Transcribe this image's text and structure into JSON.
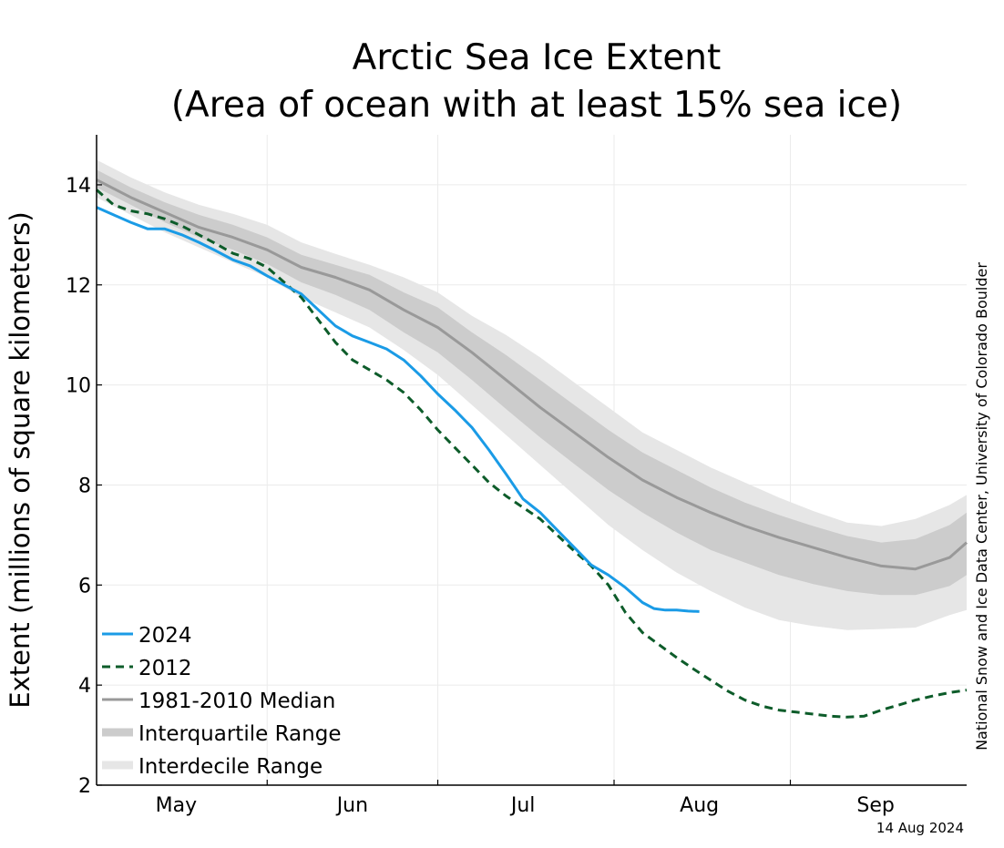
{
  "chart_data": {
    "type": "line",
    "title": "Arctic Sea Ice Extent",
    "subtitle": "(Area of ocean with at least 15% sea ice)",
    "xlabel": "",
    "ylabel": "Extent (millions of square kilometers)",
    "credit": "National Snow and Ice Data Center, University of Colorado Boulder",
    "date_stamp": "14 Aug 2024",
    "x_unit": "day of year",
    "xlim": [
      122,
      275
    ],
    "ylim": [
      2,
      15
    ],
    "x_ticks": [
      {
        "label": "May",
        "day": 136
      },
      {
        "label": "Jun",
        "day": 167
      },
      {
        "label": "Jul",
        "day": 197
      },
      {
        "label": "Aug",
        "day": 228
      },
      {
        "label": "Sep",
        "day": 259
      }
    ],
    "x_gridlines": [
      152,
      182,
      213,
      244
    ],
    "y_ticks": [
      2,
      4,
      6,
      8,
      10,
      12,
      14
    ],
    "grid": true,
    "legend_position": "bottom-left",
    "colors": {
      "series_2024": "#1a9be6",
      "series_2012": "#0d5c2a",
      "median": "#999999",
      "interquartile": "#cccccc",
      "interdecile": "#e6e6e6"
    },
    "legend": [
      {
        "label": "2024",
        "style": "line-2024"
      },
      {
        "label": "2012",
        "style": "line-2012"
      },
      {
        "label": "1981-2010 Median",
        "style": "line-median"
      },
      {
        "label": "Interquartile Range",
        "style": "band-iqr"
      },
      {
        "label": "Interdecile Range",
        "style": "band-idr"
      }
    ],
    "series": [
      {
        "name": "2024",
        "x": [
          122,
          125,
          128,
          131,
          134,
          137,
          140,
          143,
          146,
          149,
          152,
          155,
          158,
          161,
          164,
          167,
          170,
          173,
          176,
          179,
          182,
          185,
          188,
          191,
          194,
          197,
          200,
          203,
          206,
          209,
          212,
          215,
          218,
          220,
          222,
          224,
          226,
          228
        ],
        "y": [
          13.55,
          13.4,
          13.25,
          13.12,
          13.12,
          13.0,
          12.85,
          12.68,
          12.5,
          12.38,
          12.18,
          12.0,
          11.82,
          11.5,
          11.18,
          10.98,
          10.85,
          10.72,
          10.5,
          10.18,
          9.82,
          9.5,
          9.15,
          8.7,
          8.22,
          7.72,
          7.45,
          7.1,
          6.75,
          6.4,
          6.2,
          5.95,
          5.65,
          5.53,
          5.5,
          5.5,
          5.48,
          5.47
        ]
      },
      {
        "name": "2012",
        "x": [
          122,
          125,
          128,
          131,
          134,
          137,
          140,
          143,
          146,
          149,
          152,
          155,
          158,
          161,
          164,
          167,
          170,
          173,
          176,
          179,
          182,
          185,
          188,
          191,
          194,
          197,
          200,
          203,
          206,
          209,
          212,
          215,
          218,
          221,
          224,
          227,
          230,
          233,
          236,
          239,
          242,
          245,
          248,
          251,
          254,
          257,
          260,
          263,
          266,
          269,
          272,
          275
        ],
        "y": [
          13.9,
          13.6,
          13.48,
          13.42,
          13.32,
          13.18,
          13.0,
          12.82,
          12.63,
          12.52,
          12.35,
          12.05,
          11.75,
          11.3,
          10.85,
          10.5,
          10.3,
          10.1,
          9.85,
          9.5,
          9.1,
          8.75,
          8.4,
          8.05,
          7.78,
          7.55,
          7.32,
          7.0,
          6.68,
          6.38,
          6.0,
          5.45,
          5.05,
          4.8,
          4.55,
          4.32,
          4.1,
          3.88,
          3.7,
          3.58,
          3.5,
          3.46,
          3.42,
          3.38,
          3.36,
          3.38,
          3.5,
          3.6,
          3.7,
          3.78,
          3.85,
          3.9
        ]
      },
      {
        "name": "1981-2010 Median",
        "x": [
          122,
          128,
          134,
          140,
          146,
          152,
          158,
          164,
          170,
          176,
          182,
          188,
          194,
          200,
          206,
          212,
          218,
          224,
          230,
          236,
          242,
          248,
          254,
          260,
          266,
          272,
          275
        ],
        "y": [
          14.1,
          13.75,
          13.45,
          13.15,
          12.95,
          12.7,
          12.35,
          12.15,
          11.9,
          11.5,
          11.15,
          10.65,
          10.1,
          9.55,
          9.05,
          8.55,
          8.1,
          7.75,
          7.45,
          7.18,
          6.95,
          6.75,
          6.55,
          6.38,
          6.32,
          6.55,
          6.85
        ]
      }
    ],
    "bands": [
      {
        "name": "Interquartile Range",
        "x": [
          122,
          128,
          134,
          140,
          146,
          152,
          158,
          164,
          170,
          176,
          182,
          188,
          194,
          200,
          206,
          212,
          218,
          224,
          230,
          236,
          242,
          248,
          254,
          260,
          266,
          272,
          275
        ],
        "lower": [
          13.95,
          13.6,
          13.25,
          12.95,
          12.7,
          12.42,
          12.05,
          11.8,
          11.5,
          11.05,
          10.65,
          10.1,
          9.52,
          8.95,
          8.42,
          7.9,
          7.45,
          7.05,
          6.7,
          6.45,
          6.2,
          6.02,
          5.88,
          5.8,
          5.8,
          5.98,
          6.2
        ],
        "upper": [
          14.3,
          13.95,
          13.65,
          13.4,
          13.2,
          12.95,
          12.6,
          12.4,
          12.2,
          11.85,
          11.55,
          11.05,
          10.6,
          10.1,
          9.6,
          9.1,
          8.65,
          8.3,
          7.95,
          7.65,
          7.4,
          7.18,
          6.98,
          6.85,
          6.92,
          7.2,
          7.45
        ]
      },
      {
        "name": "Interdecile Range",
        "x": [
          122,
          128,
          134,
          140,
          146,
          152,
          158,
          164,
          170,
          176,
          182,
          188,
          194,
          200,
          206,
          212,
          218,
          224,
          230,
          236,
          242,
          248,
          254,
          260,
          266,
          272,
          275
        ],
        "lower": [
          13.75,
          13.4,
          13.05,
          12.75,
          12.45,
          12.15,
          11.75,
          11.45,
          11.15,
          10.7,
          10.2,
          9.6,
          9.0,
          8.4,
          7.8,
          7.2,
          6.7,
          6.25,
          5.88,
          5.55,
          5.3,
          5.18,
          5.1,
          5.12,
          5.15,
          5.4,
          5.5
        ],
        "upper": [
          14.5,
          14.15,
          13.85,
          13.6,
          13.42,
          13.2,
          12.85,
          12.62,
          12.4,
          12.15,
          11.85,
          11.38,
          11.0,
          10.55,
          10.05,
          9.55,
          9.05,
          8.7,
          8.35,
          8.05,
          7.75,
          7.48,
          7.25,
          7.18,
          7.32,
          7.6,
          7.8
        ]
      }
    ]
  }
}
